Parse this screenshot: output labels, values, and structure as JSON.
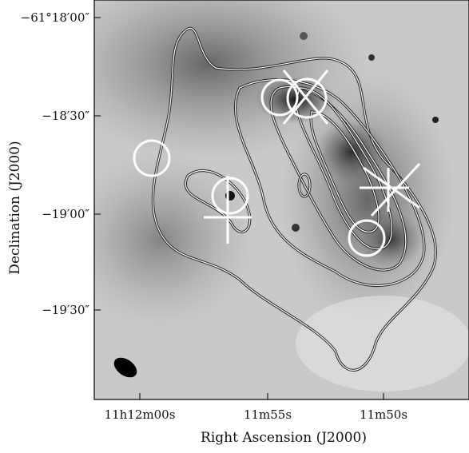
{
  "figure": {
    "y_axis_label": "Declination (J2000)",
    "x_axis_label": "Right Ascension (J2000)",
    "y_tick_labels": [
      "−61°18′00″",
      "−18′30″",
      "−19′00″",
      "−19′30″"
    ],
    "x_tick_labels": [
      "11h12m00s",
      "11m55s",
      "11m50s"
    ]
  }
}
